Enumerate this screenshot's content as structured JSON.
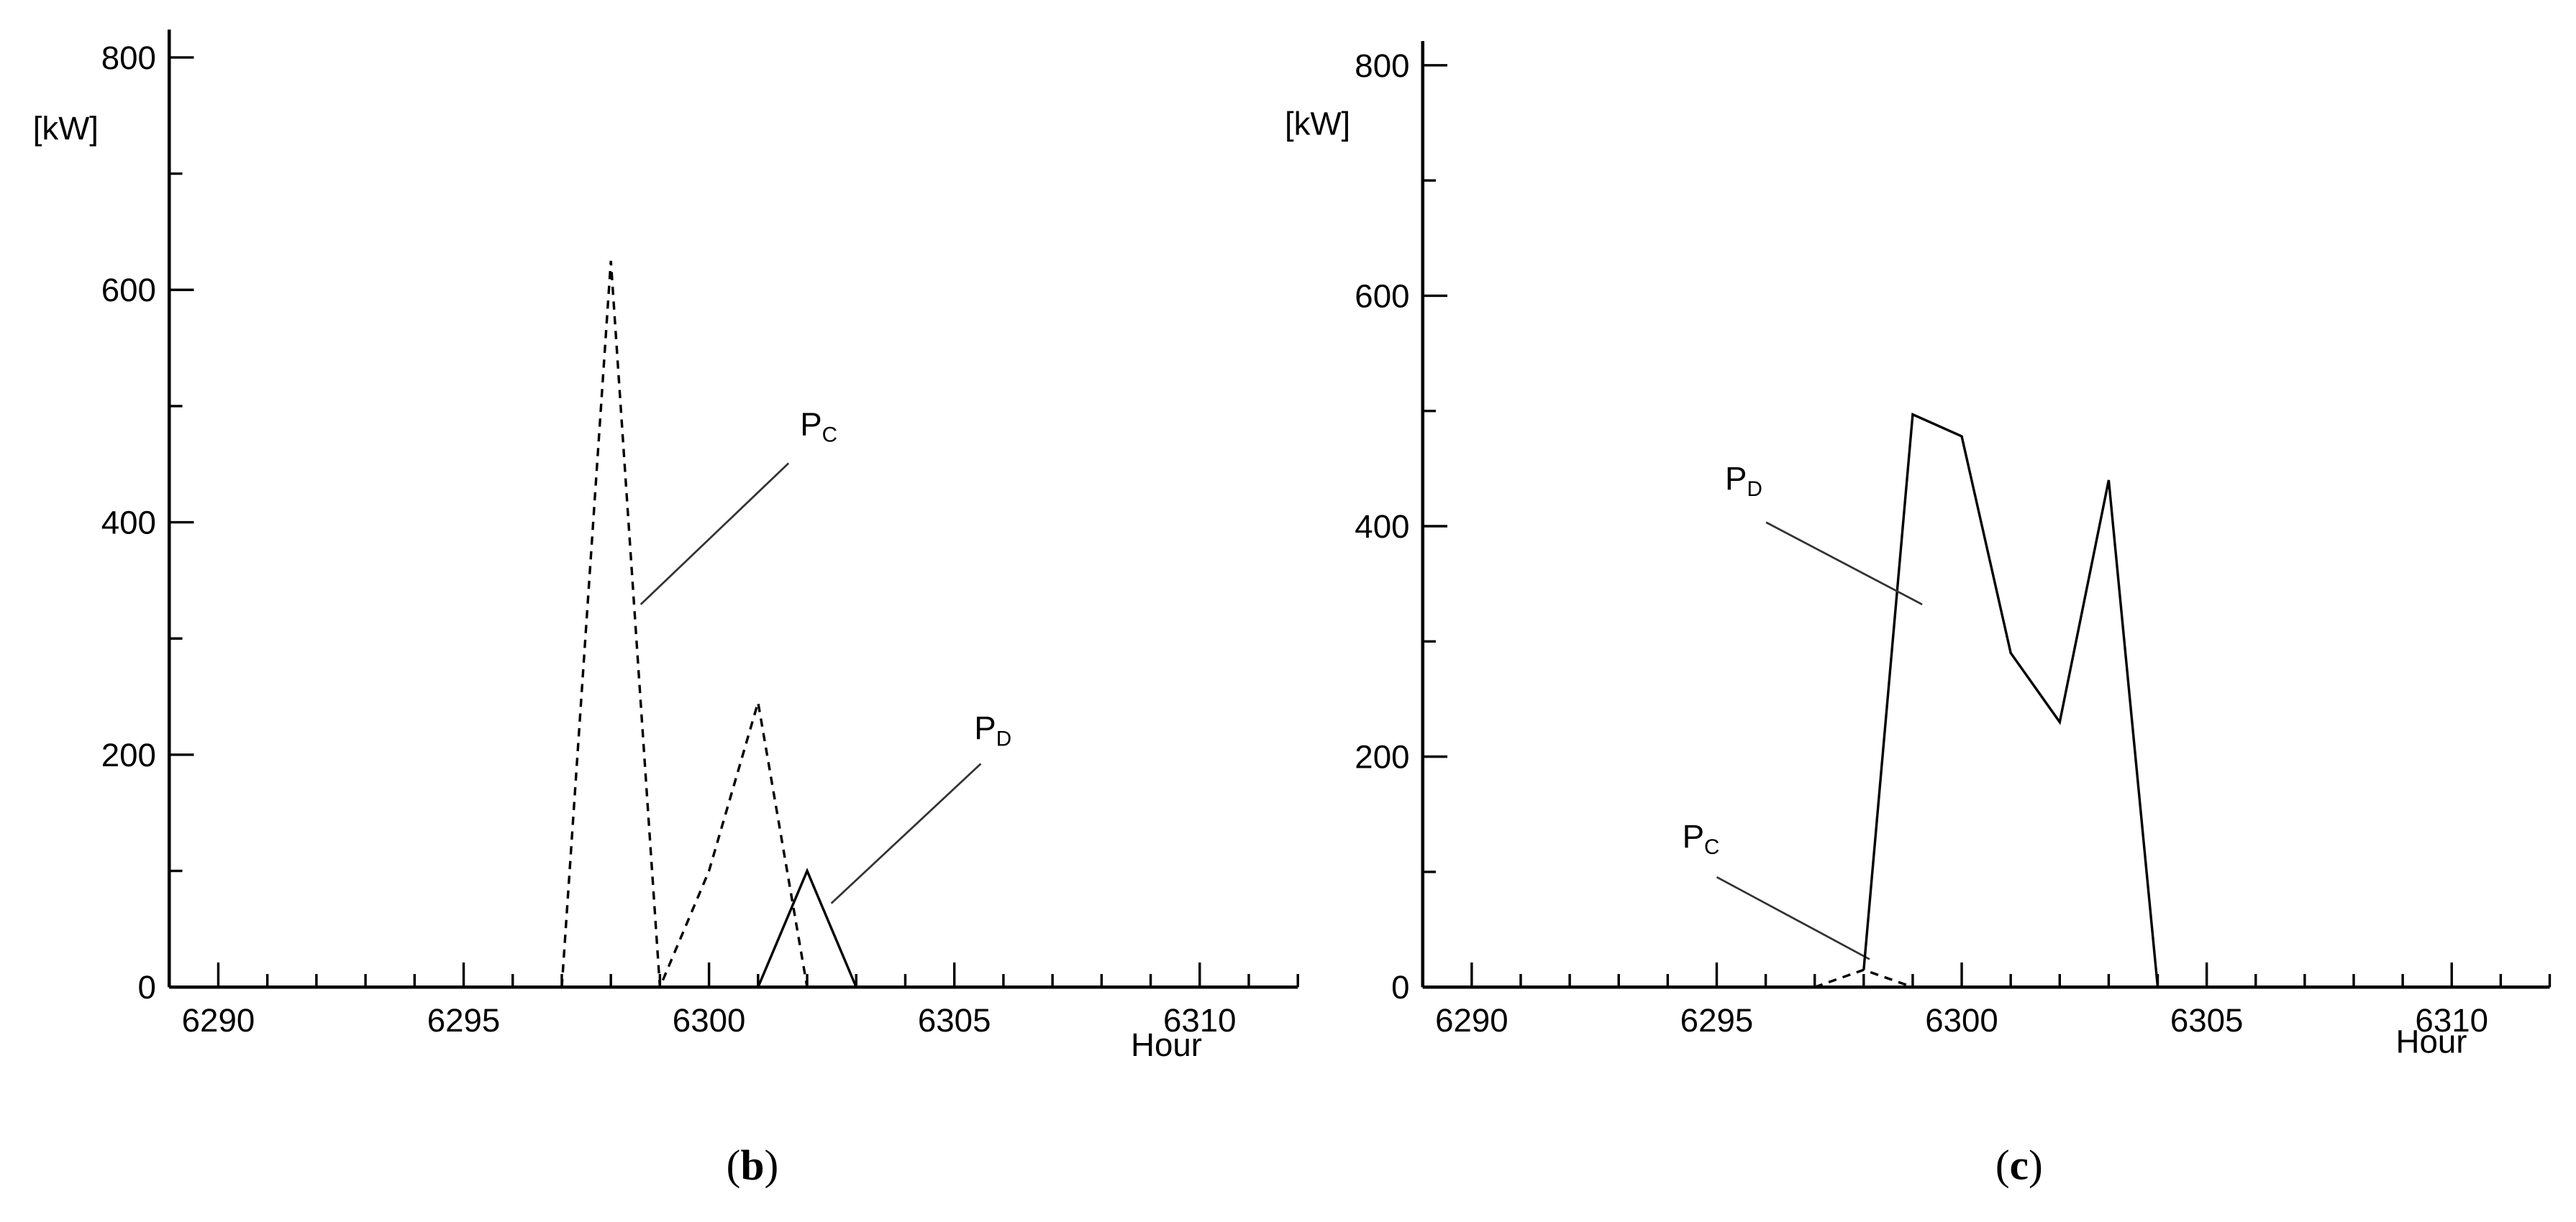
{
  "chart_data": [
    {
      "type": "line",
      "panel_label": "(b)",
      "ylabel": "[kW]",
      "xlabel": "Hour",
      "xlim": [
        6289,
        6312
      ],
      "ylim": [
        0,
        824
      ],
      "xticks": [
        6290,
        6295,
        6300,
        6305,
        6310
      ],
      "yticks": [
        0,
        200,
        400,
        600,
        800
      ],
      "minor_xticks": [
        6289,
        6291,
        6292,
        6293,
        6294,
        6296,
        6297,
        6298,
        6299,
        6301,
        6302,
        6303,
        6304,
        6306,
        6307,
        6308,
        6309,
        6311,
        6312
      ],
      "minor_yticks": [
        100,
        300,
        500,
        700
      ],
      "series": [
        {
          "name": "PC",
          "color": "#000000",
          "style": "dashed",
          "x": [
            6297,
            6298,
            6299,
            6300,
            6301,
            6302
          ],
          "values": [
            0,
            625,
            0,
            100,
            245,
            0
          ]
        },
        {
          "name": "PD",
          "color": "#000000",
          "style": "solid",
          "x": [
            6301,
            6302,
            6303
          ],
          "values": [
            0,
            100,
            0
          ]
        }
      ]
    },
    {
      "type": "line",
      "panel_label": "(c)",
      "ylabel": "[kW]",
      "xlabel": "Hour",
      "xlim": [
        6289,
        6312
      ],
      "ylim": [
        0,
        821
      ],
      "xticks": [
        6290,
        6295,
        6300,
        6305,
        6310
      ],
      "yticks": [
        0,
        200,
        400,
        600,
        800
      ],
      "minor_xticks": [
        6289,
        6291,
        6292,
        6293,
        6294,
        6296,
        6297,
        6298,
        6299,
        6301,
        6302,
        6303,
        6304,
        6306,
        6307,
        6308,
        6309,
        6311,
        6312
      ],
      "minor_yticks": [
        100,
        300,
        500,
        700
      ],
      "series": [
        {
          "name": "PC",
          "color": "#000000",
          "style": "dashed",
          "x": [
            6297,
            6298,
            6299
          ],
          "values": [
            0,
            15,
            0
          ]
        },
        {
          "name": "PD",
          "color": "#000000",
          "style": "solid",
          "x": [
            6298,
            6299,
            6300,
            6301,
            6302,
            6303,
            6304
          ],
          "values": [
            15,
            497,
            478,
            290,
            230,
            440,
            0
          ]
        }
      ]
    }
  ]
}
